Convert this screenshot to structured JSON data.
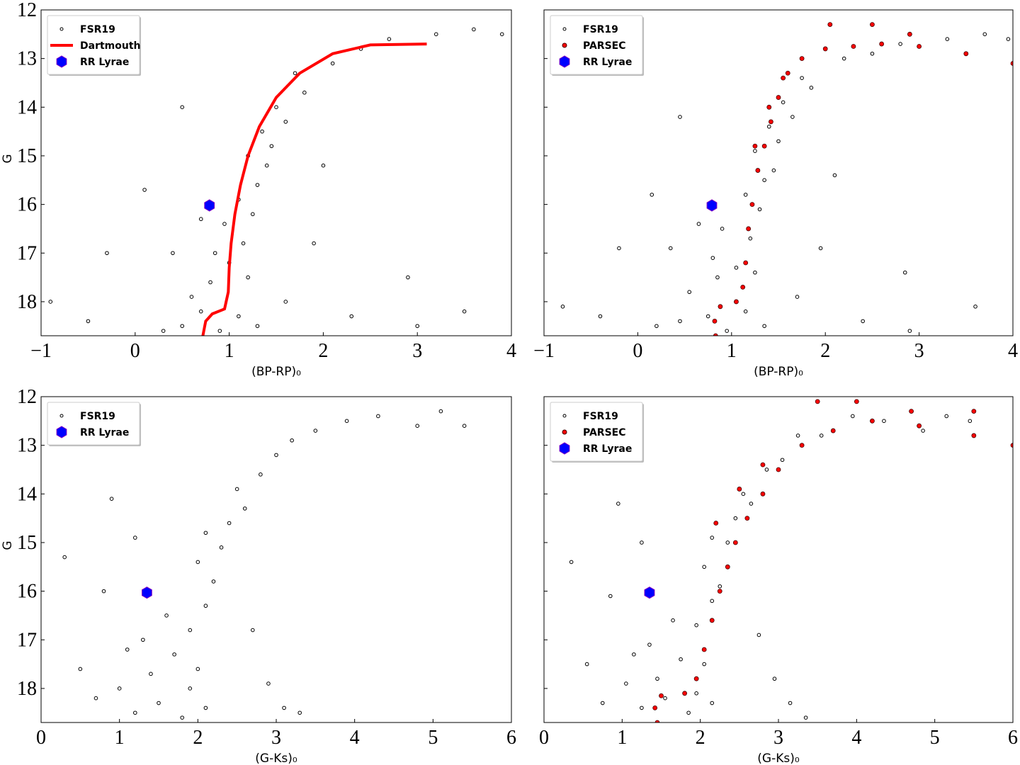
{
  "chart_data": [
    {
      "type": "scatter",
      "xlabel": "(BP-RP)₀",
      "ylabel": "G",
      "xlim": [
        -1,
        4
      ],
      "ylim": [
        18.7,
        12
      ],
      "xticks": [
        {
          "value": -1,
          "label": "−1"
        },
        0,
        1,
        2,
        3,
        4
      ],
      "yticks": [
        12,
        13,
        14,
        15,
        16,
        17,
        18
      ],
      "ytick_labels": true,
      "legend": "upper left",
      "series": [
        {
          "name": "FSR19",
          "style": "point",
          "color": "#ffffff",
          "x": [
            0.5,
            0.7,
            0.9,
            1.1,
            1.3,
            0.6,
            0.8,
            1.0,
            1.2,
            0.85,
            1.15,
            0.95,
            1.25,
            1.1,
            1.3,
            1.4,
            1.2,
            1.45,
            1.35,
            1.6,
            1.5,
            1.8,
            1.7,
            2.1,
            2.4,
            2.7,
            3.2,
            3.6,
            3.9,
            0.3,
            -0.5,
            -0.9,
            0.1,
            0.5,
            2.0,
            2.3,
            3.5,
            2.9,
            1.9,
            0.7,
            0.4,
            1.6,
            -0.3,
            3.0
          ],
          "values": [
            18.5,
            18.2,
            18.6,
            18.3,
            18.5,
            17.9,
            17.6,
            17.2,
            17.5,
            17.0,
            16.8,
            16.4,
            16.2,
            15.9,
            15.6,
            15.2,
            15.0,
            14.8,
            14.5,
            14.3,
            14.0,
            13.7,
            13.3,
            13.1,
            12.8,
            12.6,
            12.5,
            12.4,
            12.5,
            18.6,
            18.4,
            18.0,
            15.7,
            14.0,
            15.2,
            18.3,
            18.2,
            17.5,
            16.8,
            16.3,
            17.0,
            18.0,
            17.0,
            18.5
          ]
        },
        {
          "name": "Dartmouth",
          "style": "line",
          "color": "#ff0000",
          "x": [
            0.72,
            0.75,
            0.82,
            0.95,
            0.99,
            1.0,
            1.02,
            1.06,
            1.12,
            1.2,
            1.32,
            1.5,
            1.75,
            2.1,
            2.5,
            3.1
          ],
          "values": [
            18.7,
            18.4,
            18.25,
            18.15,
            17.8,
            17.3,
            16.8,
            16.2,
            15.6,
            15.0,
            14.4,
            13.8,
            13.3,
            12.9,
            12.72,
            12.7
          ]
        },
        {
          "name": "RR Lyrae",
          "style": "hexagon",
          "color": "#0000ff",
          "x": [
            0.79
          ],
          "values": [
            16.02
          ]
        }
      ]
    },
    {
      "type": "scatter",
      "xlabel": "(BP-RP)₀",
      "xlim": [
        -1,
        4
      ],
      "ylim": [
        18.7,
        12
      ],
      "xticks": [
        {
          "value": -1,
          "label": "−1"
        },
        0,
        1,
        2,
        3,
        4
      ],
      "yticks": [
        12,
        13,
        14,
        15,
        16,
        17,
        18
      ],
      "ytick_labels": false,
      "legend": "upper left",
      "series": [
        {
          "name": "FSR19",
          "style": "point",
          "color": "#ffffff",
          "x": [
            0.45,
            0.75,
            0.95,
            1.15,
            1.35,
            0.55,
            0.85,
            1.05,
            1.25,
            0.8,
            1.2,
            0.9,
            1.3,
            1.15,
            1.35,
            1.45,
            1.25,
            1.5,
            1.4,
            1.65,
            1.55,
            1.85,
            1.75,
            2.2,
            2.5,
            2.8,
            3.3,
            3.7,
            3.95,
            0.2,
            -0.4,
            -0.8,
            0.15,
            0.45,
            2.1,
            2.4,
            3.6,
            2.85,
            1.95,
            0.65,
            0.35,
            1.7,
            -0.2,
            2.9
          ],
          "values": [
            18.4,
            18.3,
            18.6,
            18.2,
            18.5,
            17.8,
            17.5,
            17.3,
            17.4,
            17.1,
            16.7,
            16.5,
            16.1,
            15.8,
            15.5,
            15.3,
            14.9,
            14.7,
            14.4,
            14.2,
            13.9,
            13.6,
            13.4,
            13.0,
            12.9,
            12.7,
            12.6,
            12.5,
            12.6,
            18.5,
            18.3,
            18.1,
            15.8,
            14.2,
            15.4,
            18.4,
            18.1,
            17.4,
            16.9,
            16.4,
            16.9,
            17.9,
            16.9,
            18.6
          ]
        },
        {
          "name": "PARSEC",
          "style": "dot",
          "color": "#ff0000",
          "x": [
            0.83,
            0.82,
            0.88,
            1.05,
            1.12,
            1.15,
            1.18,
            1.22,
            1.28,
            1.35,
            1.42,
            1.5,
            1.6,
            1.75,
            2.0,
            2.3,
            2.6,
            3.0,
            3.5,
            4.0,
            1.25,
            1.4,
            1.55,
            2.05,
            2.5,
            2.9
          ],
          "values": [
            18.7,
            18.4,
            18.1,
            18.0,
            17.7,
            17.2,
            16.5,
            16.0,
            15.3,
            14.8,
            14.3,
            13.8,
            13.3,
            13.0,
            12.8,
            12.75,
            12.7,
            12.75,
            12.9,
            13.1,
            14.8,
            14.0,
            13.4,
            12.3,
            12.3,
            12.5
          ]
        },
        {
          "name": "RR Lyrae",
          "style": "hexagon",
          "color": "#0000ff",
          "x": [
            0.79
          ],
          "values": [
            16.02
          ]
        }
      ]
    },
    {
      "type": "scatter",
      "xlabel": "(G-Ks)₀",
      "ylabel": "G",
      "xlim": [
        0,
        6
      ],
      "ylim": [
        18.7,
        12
      ],
      "xticks": [
        0,
        1,
        2,
        3,
        4,
        5,
        6
      ],
      "yticks": [
        12,
        13,
        14,
        15,
        16,
        17,
        18
      ],
      "ytick_labels": true,
      "legend": "upper left",
      "series": [
        {
          "name": "FSR19",
          "style": "point",
          "color": "#ffffff",
          "x": [
            1.2,
            1.5,
            1.8,
            2.1,
            1.0,
            1.4,
            1.7,
            2.0,
            1.3,
            1.9,
            2.1,
            1.6,
            2.2,
            2.0,
            2.3,
            2.1,
            2.4,
            2.6,
            2.5,
            2.8,
            3.0,
            3.2,
            3.5,
            3.9,
            4.3,
            4.8,
            5.1,
            5.4,
            0.8,
            0.5,
            0.3,
            0.9,
            1.2,
            2.9,
            3.1,
            3.3,
            2.7,
            1.1,
            1.9,
            0.7
          ],
          "values": [
            18.5,
            18.3,
            18.6,
            18.4,
            18.0,
            17.7,
            17.3,
            17.6,
            17.0,
            16.8,
            16.3,
            16.5,
            15.8,
            15.4,
            15.1,
            14.8,
            14.6,
            14.3,
            13.9,
            13.6,
            13.2,
            12.9,
            12.7,
            12.5,
            12.4,
            12.6,
            12.3,
            12.6,
            16.0,
            17.6,
            15.3,
            14.1,
            14.9,
            17.9,
            18.4,
            18.5,
            16.8,
            17.2,
            18.0,
            18.2
          ]
        },
        {
          "name": "RR Lyrae",
          "style": "hexagon",
          "color": "#0000ff",
          "x": [
            1.35
          ],
          "values": [
            16.03
          ]
        }
      ]
    },
    {
      "type": "scatter",
      "xlabel": "(G-Ks)₀",
      "xlim": [
        0,
        6
      ],
      "ylim": [
        18.7,
        12
      ],
      "xticks": [
        0,
        1,
        2,
        3,
        4,
        5,
        6
      ],
      "yticks": [
        12,
        13,
        14,
        15,
        16,
        17,
        18
      ],
      "ytick_labels": false,
      "legend": "upper left",
      "series": [
        {
          "name": "FSR19",
          "style": "point",
          "color": "#ffffff",
          "x": [
            1.25,
            1.55,
            1.85,
            2.15,
            1.05,
            1.45,
            1.75,
            2.05,
            1.35,
            1.95,
            2.15,
            1.65,
            2.25,
            2.05,
            2.35,
            2.15,
            2.45,
            2.65,
            2.55,
            2.85,
            3.05,
            3.25,
            3.55,
            3.95,
            4.35,
            4.85,
            5.15,
            5.45,
            0.85,
            0.55,
            0.35,
            0.95,
            1.25,
            2.95,
            3.15,
            3.35,
            2.75,
            1.15,
            1.95,
            0.75
          ],
          "values": [
            18.4,
            18.2,
            18.5,
            18.3,
            17.9,
            17.8,
            17.4,
            17.5,
            17.1,
            16.7,
            16.2,
            16.6,
            15.9,
            15.5,
            15.0,
            14.9,
            14.5,
            14.2,
            14.0,
            13.5,
            13.3,
            12.8,
            12.8,
            12.4,
            12.5,
            12.7,
            12.4,
            12.5,
            16.1,
            17.5,
            15.4,
            14.2,
            15.0,
            17.8,
            18.3,
            18.6,
            16.9,
            17.3,
            18.1,
            18.3
          ]
        },
        {
          "name": "PARSEC",
          "style": "dot",
          "color": "#ff0000",
          "x": [
            1.45,
            1.42,
            1.5,
            1.8,
            1.95,
            2.05,
            2.15,
            2.25,
            2.35,
            2.45,
            2.6,
            2.8,
            3.0,
            3.3,
            3.7,
            4.2,
            4.8,
            5.5,
            6.0,
            2.2,
            2.5,
            2.8,
            3.5,
            4.0,
            4.7,
            5.5
          ],
          "values": [
            18.7,
            18.4,
            18.15,
            18.1,
            17.8,
            17.2,
            16.6,
            16.0,
            15.5,
            15.0,
            14.5,
            14.0,
            13.5,
            13.0,
            12.7,
            12.5,
            12.6,
            12.8,
            13.0,
            14.6,
            13.9,
            13.4,
            12.1,
            12.1,
            12.3,
            12.3
          ]
        },
        {
          "name": "RR Lyrae",
          "style": "hexagon",
          "color": "#0000ff",
          "x": [
            1.35
          ],
          "values": [
            16.03
          ]
        }
      ]
    }
  ]
}
